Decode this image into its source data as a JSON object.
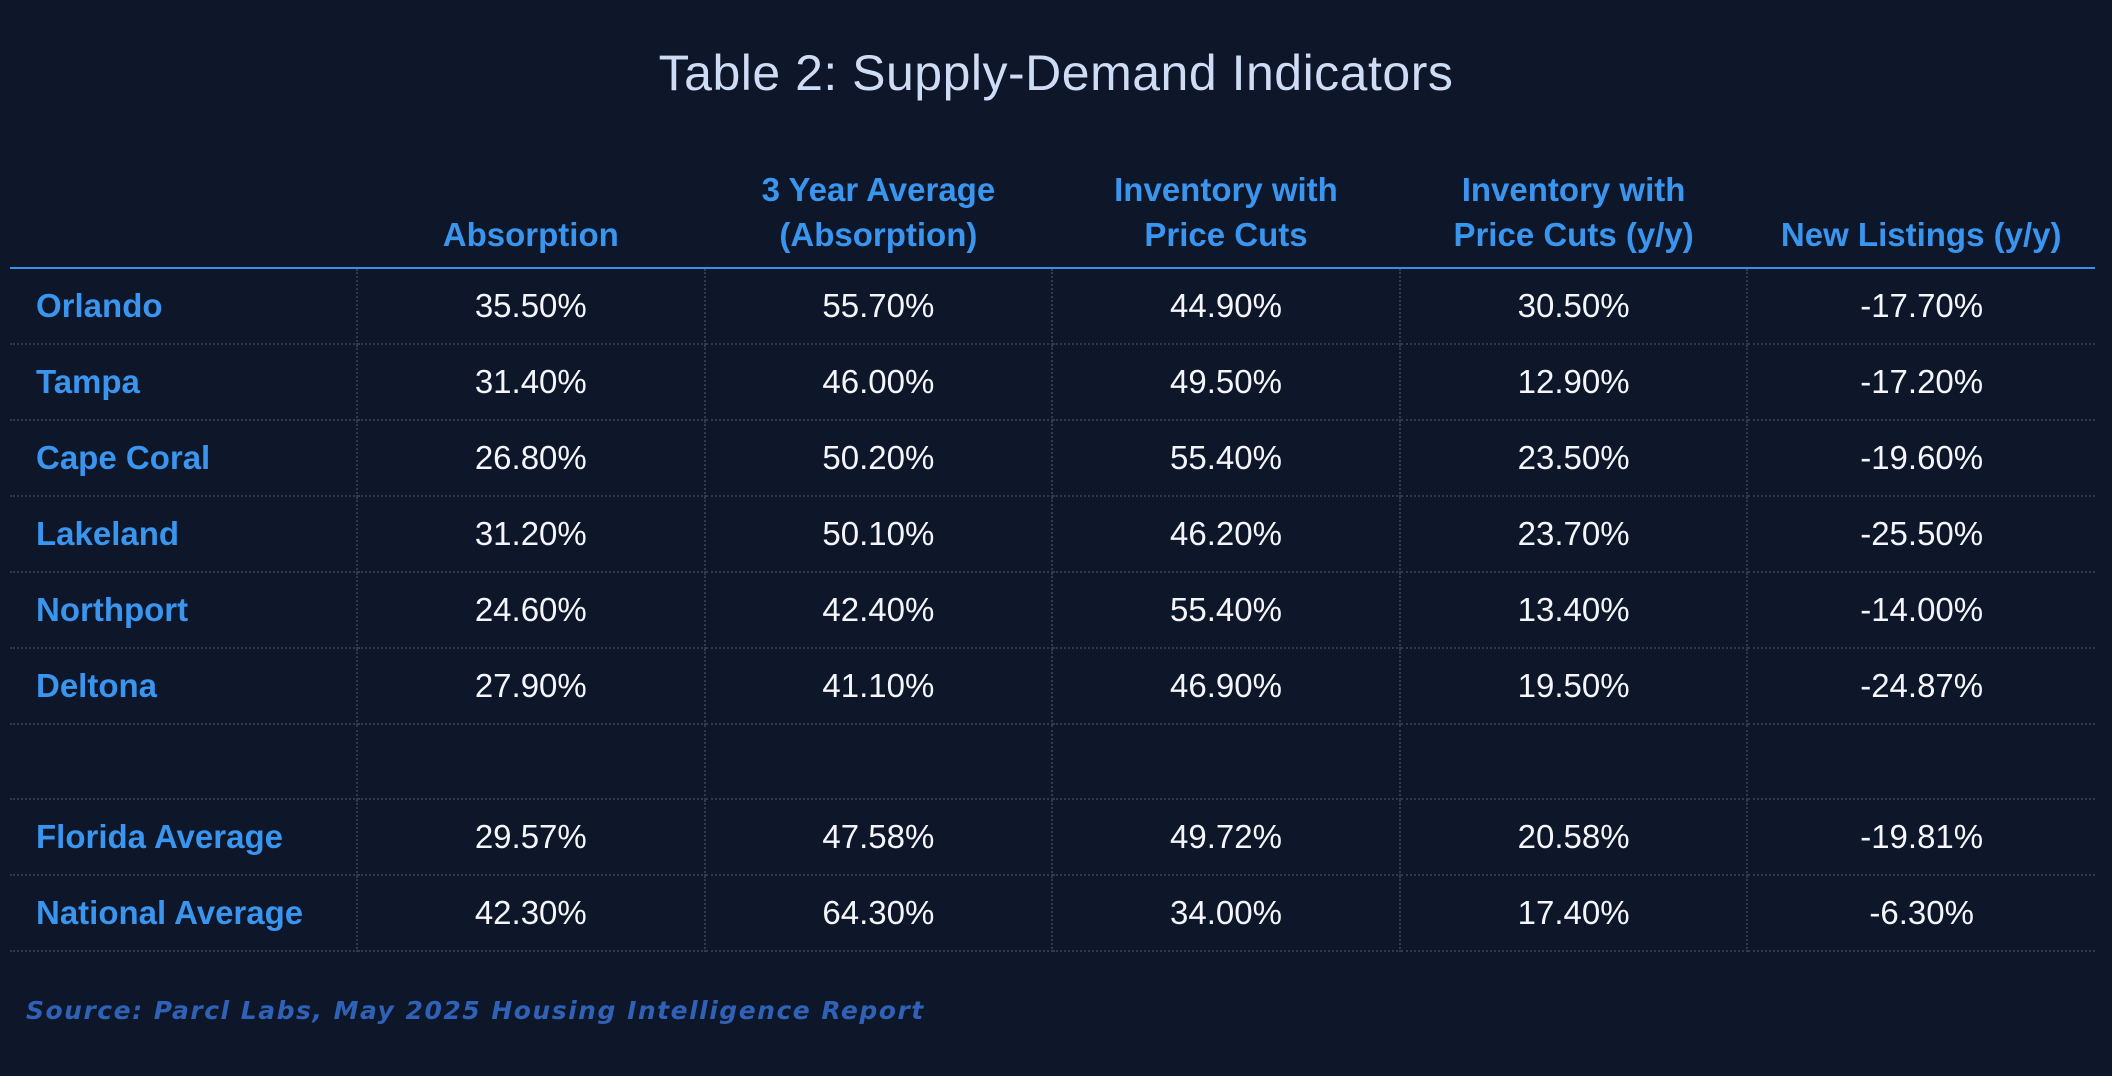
{
  "chart_data": {
    "type": "table",
    "title": "Table 2: Supply-Demand Indicators",
    "columns": [
      "",
      [
        "Absorption"
      ],
      [
        "3 Year Average",
        "(Absorption)"
      ],
      [
        "Inventory with",
        "Price Cuts"
      ],
      [
        "Inventory with",
        "Price Cuts (y/y)"
      ],
      [
        "New Listings (y/y)"
      ]
    ],
    "rows": [
      {
        "label": "Orlando",
        "values": [
          "35.50%",
          "55.70%",
          "44.90%",
          "30.50%",
          "-17.70%"
        ]
      },
      {
        "label": "Tampa",
        "values": [
          "31.40%",
          "46.00%",
          "49.50%",
          "12.90%",
          "-17.20%"
        ]
      },
      {
        "label": "Cape Coral",
        "values": [
          "26.80%",
          "50.20%",
          "55.40%",
          "23.50%",
          "-19.60%"
        ]
      },
      {
        "label": "Lakeland",
        "values": [
          "31.20%",
          "50.10%",
          "46.20%",
          "23.70%",
          "-25.50%"
        ]
      },
      {
        "label": "Northport",
        "values": [
          "24.60%",
          "42.40%",
          "55.40%",
          "13.40%",
          "-14.00%"
        ]
      },
      {
        "label": "Deltona",
        "values": [
          "27.90%",
          "41.10%",
          "46.90%",
          "19.50%",
          "-24.87%"
        ]
      },
      {
        "label": "",
        "values": [
          "",
          "",
          "",
          "",
          ""
        ]
      },
      {
        "label": "Florida Average",
        "values": [
          "29.57%",
          "47.58%",
          "49.72%",
          "20.58%",
          "-19.81%"
        ]
      },
      {
        "label": "National Average",
        "values": [
          "42.30%",
          "64.30%",
          "34.00%",
          "17.40%",
          "-6.30%"
        ]
      }
    ],
    "source": "Source: Parcl Labs, May 2025 Housing Intelligence Report",
    "colors": {
      "background": "#0e1629",
      "title": "#cfdcf5",
      "header_text": "#3a95ef",
      "row_label": "#3a95ef",
      "cell_text": "#f4f6fb",
      "header_rule": "#3a8fe8",
      "grid_dotted": "#2f3a52",
      "source_text": "#2f62b6"
    }
  }
}
